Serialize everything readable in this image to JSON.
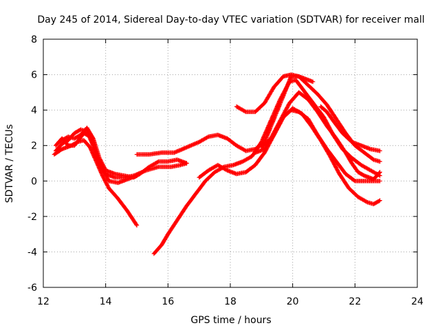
{
  "chart_data": {
    "type": "scatter",
    "title": "Day 245 of 2014, Sidereal Day-to-day VTEC variation (SDTVAR) for receiver mall",
    "xlabel": "GPS time / hours",
    "ylabel": "SDTVAR / TECUs",
    "xlim": [
      12,
      24
    ],
    "ylim": [
      -6,
      8
    ],
    "xticks": [
      12,
      14,
      16,
      18,
      20,
      22,
      24
    ],
    "yticks": [
      -6,
      -4,
      -2,
      0,
      2,
      4,
      6,
      8
    ],
    "grid": true,
    "marker": "+",
    "color": "#ff0000",
    "series": [
      {
        "name": "s1",
        "points": [
          [
            12.35,
            1.5
          ],
          [
            12.6,
            1.8
          ],
          [
            12.9,
            2.0
          ],
          [
            13.1,
            2.2
          ],
          [
            13.3,
            2.3
          ],
          [
            13.5,
            1.9
          ],
          [
            13.7,
            1.1
          ],
          [
            13.9,
            0.3
          ],
          [
            14.1,
            -0.4
          ],
          [
            14.4,
            -1.0
          ],
          [
            14.7,
            -1.7
          ],
          [
            15.0,
            -2.5
          ]
        ]
      },
      {
        "name": "s2",
        "points": [
          [
            12.4,
            1.7
          ],
          [
            12.6,
            2.1
          ],
          [
            12.8,
            2.3
          ],
          [
            13.0,
            2.7
          ],
          [
            13.2,
            2.9
          ],
          [
            13.4,
            2.8
          ],
          [
            13.6,
            2.0
          ],
          [
            13.8,
            1.0
          ],
          [
            14.0,
            0.4
          ],
          [
            14.3,
            0.2
          ],
          [
            14.6,
            0.2
          ],
          [
            14.9,
            0.3
          ],
          [
            15.3,
            0.6
          ],
          [
            15.7,
            0.8
          ],
          [
            16.1,
            0.8
          ],
          [
            16.4,
            0.9
          ],
          [
            16.6,
            1.0
          ]
        ]
      },
      {
        "name": "s3",
        "points": [
          [
            12.5,
            2.2
          ],
          [
            12.8,
            2.5
          ],
          [
            13.0,
            2.4
          ],
          [
            13.2,
            2.6
          ],
          [
            13.4,
            3.0
          ],
          [
            13.6,
            2.4
          ],
          [
            13.8,
            1.3
          ],
          [
            14.0,
            0.6
          ],
          [
            14.3,
            0.4
          ],
          [
            14.6,
            0.3
          ],
          [
            14.9,
            0.2
          ],
          [
            15.1,
            0.4
          ],
          [
            15.4,
            0.8
          ],
          [
            15.7,
            1.1
          ],
          [
            16.0,
            1.1
          ],
          [
            16.3,
            1.2
          ],
          [
            16.6,
            1.0
          ]
        ]
      },
      {
        "name": "s4",
        "points": [
          [
            12.4,
            2.0
          ],
          [
            12.6,
            2.4
          ],
          [
            12.8,
            2.0
          ],
          [
            13.0,
            2.0
          ],
          [
            13.3,
            2.7
          ],
          [
            13.5,
            2.5
          ],
          [
            13.7,
            1.5
          ],
          [
            13.9,
            0.7
          ],
          [
            14.1,
            0.0
          ],
          [
            14.4,
            -0.1
          ],
          [
            14.7,
            0.1
          ],
          [
            15.0,
            0.3
          ]
        ]
      },
      {
        "name": "s5",
        "points": [
          [
            15.0,
            1.5
          ],
          [
            15.4,
            1.5
          ],
          [
            15.8,
            1.6
          ],
          [
            16.2,
            1.6
          ],
          [
            16.6,
            1.9
          ],
          [
            17.0,
            2.2
          ],
          [
            17.3,
            2.5
          ],
          [
            17.6,
            2.6
          ],
          [
            17.9,
            2.4
          ],
          [
            18.2,
            2.0
          ],
          [
            18.5,
            1.7
          ],
          [
            18.8,
            1.8
          ],
          [
            19.1,
            2.2
          ],
          [
            19.4,
            3.5
          ],
          [
            19.7,
            4.8
          ],
          [
            19.95,
            5.9
          ],
          [
            20.2,
            5.9
          ],
          [
            20.5,
            5.4
          ],
          [
            20.8,
            4.9
          ],
          [
            21.1,
            4.3
          ],
          [
            21.4,
            3.5
          ],
          [
            21.7,
            2.7
          ],
          [
            22.0,
            2.0
          ],
          [
            22.3,
            1.6
          ],
          [
            22.6,
            1.2
          ],
          [
            22.8,
            1.1
          ]
        ]
      },
      {
        "name": "s6",
        "points": [
          [
            15.55,
            -4.1
          ],
          [
            15.8,
            -3.6
          ],
          [
            16.0,
            -3.0
          ],
          [
            16.3,
            -2.2
          ],
          [
            16.6,
            -1.4
          ],
          [
            16.9,
            -0.7
          ],
          [
            17.2,
            0.0
          ],
          [
            17.5,
            0.5
          ],
          [
            17.8,
            0.8
          ],
          [
            18.1,
            0.9
          ],
          [
            18.4,
            1.1
          ],
          [
            18.7,
            1.4
          ],
          [
            19.0,
            2.2
          ],
          [
            19.3,
            3.4
          ],
          [
            19.6,
            4.6
          ],
          [
            19.9,
            5.6
          ],
          [
            20.1,
            5.7
          ],
          [
            20.4,
            5.0
          ],
          [
            20.7,
            4.3
          ],
          [
            21.0,
            3.6
          ],
          [
            21.3,
            2.6
          ],
          [
            21.6,
            1.8
          ],
          [
            21.9,
            1.3
          ],
          [
            22.2,
            0.9
          ],
          [
            22.5,
            0.6
          ],
          [
            22.8,
            0.3
          ]
        ]
      },
      {
        "name": "s7",
        "points": [
          [
            17.0,
            0.2
          ],
          [
            17.3,
            0.6
          ],
          [
            17.6,
            0.9
          ],
          [
            17.9,
            0.6
          ],
          [
            18.2,
            0.4
          ],
          [
            18.5,
            0.5
          ],
          [
            18.8,
            0.9
          ],
          [
            19.1,
            1.6
          ],
          [
            19.4,
            2.6
          ],
          [
            19.7,
            3.6
          ],
          [
            19.95,
            4.0
          ],
          [
            20.2,
            3.9
          ],
          [
            20.5,
            3.5
          ],
          [
            20.8,
            2.6
          ],
          [
            21.1,
            1.8
          ],
          [
            21.4,
            1.1
          ],
          [
            21.7,
            0.4
          ],
          [
            22.0,
            0.0
          ],
          [
            22.3,
            0.0
          ],
          [
            22.6,
            0.0
          ],
          [
            22.8,
            0.0
          ]
        ]
      },
      {
        "name": "s8",
        "points": [
          [
            18.2,
            4.2
          ],
          [
            18.5,
            3.9
          ],
          [
            18.8,
            3.9
          ],
          [
            19.1,
            4.4
          ],
          [
            19.4,
            5.3
          ],
          [
            19.7,
            5.9
          ],
          [
            19.95,
            6.0
          ],
          [
            20.2,
            5.9
          ],
          [
            20.5,
            5.7
          ],
          [
            20.65,
            5.6
          ]
        ]
      },
      {
        "name": "s9",
        "points": [
          [
            19.0,
            1.9
          ],
          [
            19.3,
            2.4
          ],
          [
            19.6,
            3.4
          ],
          [
            19.9,
            4.4
          ],
          [
            20.2,
            5.0
          ],
          [
            20.5,
            4.6
          ],
          [
            20.8,
            3.9
          ],
          [
            21.1,
            3.1
          ],
          [
            21.4,
            2.4
          ],
          [
            21.7,
            1.6
          ],
          [
            21.9,
            1.0
          ],
          [
            22.1,
            0.5
          ],
          [
            22.3,
            0.3
          ],
          [
            22.6,
            0.1
          ],
          [
            22.8,
            0.5
          ]
        ]
      },
      {
        "name": "s10",
        "points": [
          [
            18.8,
            1.6
          ],
          [
            19.1,
            1.8
          ],
          [
            19.4,
            2.6
          ],
          [
            19.7,
            3.6
          ],
          [
            20.0,
            4.1
          ],
          [
            20.3,
            3.8
          ],
          [
            20.6,
            3.1
          ],
          [
            20.9,
            2.3
          ],
          [
            21.2,
            1.4
          ],
          [
            21.5,
            0.4
          ],
          [
            21.8,
            -0.4
          ],
          [
            22.1,
            -0.9
          ],
          [
            22.4,
            -1.2
          ],
          [
            22.6,
            -1.3
          ],
          [
            22.8,
            -1.1
          ]
        ]
      },
      {
        "name": "s11",
        "points": [
          [
            20.9,
            4.2
          ],
          [
            21.1,
            3.9
          ],
          [
            21.3,
            3.4
          ],
          [
            21.6,
            2.7
          ],
          [
            21.9,
            2.2
          ],
          [
            22.2,
            2.0
          ],
          [
            22.5,
            1.8
          ],
          [
            22.8,
            1.7
          ]
        ]
      }
    ]
  }
}
